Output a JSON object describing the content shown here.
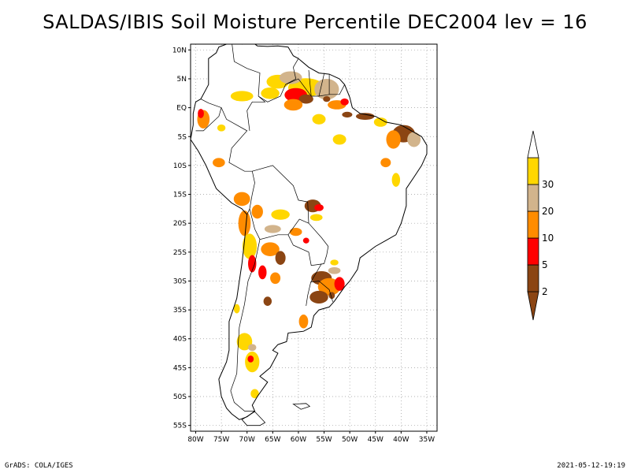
{
  "title": "SALDAS/IBIS Soil Moisture Percentile DEC2004 lev = 16",
  "footer": {
    "left": "GrADS: COLA/IGES",
    "right": "2021-05-12-19:19"
  },
  "map": {
    "lat_range": [
      -56,
      11
    ],
    "lon_range": [
      -81,
      -33
    ],
    "lat_ticks": [
      {
        "value": 10,
        "label": "10N"
      },
      {
        "value": 5,
        "label": "5N"
      },
      {
        "value": 0,
        "label": "EQ"
      },
      {
        "value": -5,
        "label": "5S"
      },
      {
        "value": -10,
        "label": "10S"
      },
      {
        "value": -15,
        "label": "15S"
      },
      {
        "value": -20,
        "label": "20S"
      },
      {
        "value": -25,
        "label": "25S"
      },
      {
        "value": -30,
        "label": "30S"
      },
      {
        "value": -35,
        "label": "35S"
      },
      {
        "value": -40,
        "label": "40S"
      },
      {
        "value": -45,
        "label": "45S"
      },
      {
        "value": -50,
        "label": "50S"
      },
      {
        "value": -55,
        "label": "55S"
      }
    ],
    "lon_ticks": [
      {
        "value": -80,
        "label": "80W"
      },
      {
        "value": -75,
        "label": "75W"
      },
      {
        "value": -70,
        "label": "70W"
      },
      {
        "value": -65,
        "label": "65W"
      },
      {
        "value": -60,
        "label": "60W"
      },
      {
        "value": -55,
        "label": "55W"
      },
      {
        "value": -50,
        "label": "50W"
      },
      {
        "value": -45,
        "label": "45W"
      },
      {
        "value": -40,
        "label": "40W"
      },
      {
        "value": -35,
        "label": "35W"
      }
    ],
    "grid": "dotted",
    "coastline": [
      [
        -77.5,
        8.5
      ],
      [
        -76,
        9.5
      ],
      [
        -75.5,
        10.5
      ],
      [
        -74,
        11
      ],
      [
        -72,
        12
      ],
      [
        -71,
        11
      ],
      [
        -70,
        12
      ],
      [
        -68,
        10.7
      ],
      [
        -66,
        10.6
      ],
      [
        -64,
        10.7
      ],
      [
        -62,
        10.5
      ],
      [
        -61,
        9
      ],
      [
        -60,
        8.5
      ],
      [
        -58,
        7
      ],
      [
        -56,
        6
      ],
      [
        -54,
        5.8
      ],
      [
        -52,
        5
      ],
      [
        -51,
        4
      ],
      [
        -50,
        1.8
      ],
      [
        -49.5,
        0
      ],
      [
        -48,
        -1
      ],
      [
        -45,
        -1.5
      ],
      [
        -43,
        -2.5
      ],
      [
        -40,
        -3
      ],
      [
        -38,
        -4
      ],
      [
        -36,
        -5
      ],
      [
        -35,
        -6.5
      ],
      [
        -35,
        -8
      ],
      [
        -36,
        -10
      ],
      [
        -37.5,
        -12
      ],
      [
        -39,
        -14
      ],
      [
        -39,
        -17
      ],
      [
        -40,
        -20
      ],
      [
        -41,
        -22
      ],
      [
        -43,
        -23
      ],
      [
        -45,
        -24
      ],
      [
        -48,
        -26
      ],
      [
        -48.5,
        -28
      ],
      [
        -50,
        -30
      ],
      [
        -51,
        -31
      ],
      [
        -53,
        -33.5
      ],
      [
        -54,
        -34.5
      ],
      [
        -56,
        -35
      ],
      [
        -57,
        -36
      ],
      [
        -57.5,
        -38
      ],
      [
        -59,
        -38.7
      ],
      [
        -62,
        -39
      ],
      [
        -62.3,
        -40.5
      ],
      [
        -64,
        -41
      ],
      [
        -65,
        -42
      ],
      [
        -64,
        -42.5
      ],
      [
        -65.5,
        -45
      ],
      [
        -67.5,
        -46.5
      ],
      [
        -66,
        -47.5
      ],
      [
        -68,
        -50
      ],
      [
        -69,
        -51.5
      ],
      [
        -68.5,
        -52.5
      ],
      [
        -70,
        -53.5
      ],
      [
        -71.5,
        -54
      ],
      [
        -73,
        -53
      ],
      [
        -74,
        -52
      ],
      [
        -75,
        -50
      ],
      [
        -75.5,
        -47
      ],
      [
        -74,
        -44
      ],
      [
        -73.5,
        -42
      ],
      [
        -73.5,
        -40
      ],
      [
        -73.5,
        -37
      ],
      [
        -72,
        -33
      ],
      [
        -71.5,
        -30
      ],
      [
        -71,
        -27
      ],
      [
        -70.5,
        -23
      ],
      [
        -70,
        -18.5
      ],
      [
        -71,
        -17.5
      ],
      [
        -73,
        -16.5
      ],
      [
        -76,
        -14
      ],
      [
        -77,
        -12
      ],
      [
        -78,
        -10
      ],
      [
        -79.5,
        -7.5
      ],
      [
        -81,
        -5.5
      ],
      [
        -80.5,
        -3
      ],
      [
        -80.5,
        -1
      ],
      [
        -80,
        1
      ],
      [
        -79,
        1.5
      ],
      [
        -77.5,
        4
      ],
      [
        -77.5,
        6.5
      ],
      [
        -77.5,
        8.5
      ]
    ],
    "tierra_del_fuego": [
      [
        -68.5,
        -52.6
      ],
      [
        -66.5,
        -54.5
      ],
      [
        -67.5,
        -55
      ],
      [
        -70,
        -55
      ],
      [
        -71,
        -54
      ],
      [
        -68.5,
        -52.6
      ]
    ],
    "falklands": [
      [
        -61,
        -51.3
      ],
      [
        -58.5,
        -51.2
      ],
      [
        -57.8,
        -51.7
      ],
      [
        -59.5,
        -52.2
      ],
      [
        -61,
        -51.3
      ]
    ],
    "borders": [
      [
        [
          -73,
          11.5
        ],
        [
          -72.5,
          8
        ],
        [
          -70,
          6.8
        ],
        [
          -67.5,
          6
        ],
        [
          -67.8,
          2
        ],
        [
          -66.5,
          1
        ],
        [
          -69,
          1
        ],
        [
          -70,
          -0.5
        ],
        [
          -69.5,
          -4
        ]
      ],
      [
        [
          -67.8,
          2
        ],
        [
          -66,
          1
        ],
        [
          -63.5,
          2
        ],
        [
          -62.5,
          4
        ],
        [
          -60.5,
          5
        ],
        [
          -61,
          7
        ],
        [
          -60,
          8.5
        ]
      ],
      [
        [
          -62.5,
          4
        ],
        [
          -60,
          5
        ],
        [
          -57.5,
          2
        ],
        [
          -56,
          2
        ],
        [
          -54,
          2.3
        ],
        [
          -52,
          2.3
        ],
        [
          -51,
          4
        ]
      ],
      [
        [
          -57.5,
          2
        ],
        [
          -58,
          6.5
        ]
      ],
      [
        [
          -56,
          2
        ],
        [
          -55,
          5.8
        ]
      ],
      [
        [
          -54,
          2.3
        ],
        [
          -54,
          5.7
        ]
      ],
      [
        [
          -79,
          1.5
        ],
        [
          -77.5,
          0.8
        ],
        [
          -75,
          0
        ],
        [
          -75.5,
          -1.5
        ],
        [
          -78.5,
          -4
        ],
        [
          -80,
          -4
        ]
      ],
      [
        [
          -75,
          0
        ],
        [
          -74,
          -2
        ],
        [
          -70,
          -4
        ],
        [
          -73,
          -7
        ],
        [
          -73.5,
          -9.5
        ],
        [
          -70.5,
          -11
        ],
        [
          -69,
          -11
        ],
        [
          -68.5,
          -13
        ],
        [
          -69,
          -15
        ],
        [
          -69.5,
          -17.5
        ],
        [
          -70,
          -18.5
        ]
      ],
      [
        [
          -69,
          -11
        ],
        [
          -65,
          -10
        ],
        [
          -61,
          -13.5
        ],
        [
          -60,
          -16
        ],
        [
          -58.2,
          -16.3
        ],
        [
          -58,
          -20
        ]
      ],
      [
        [
          -69.5,
          -17.5
        ],
        [
          -68.5,
          -21
        ],
        [
          -67.5,
          -22.8
        ],
        [
          -64,
          -22
        ],
        [
          -62,
          -22
        ],
        [
          -59.8,
          -19.3
        ],
        [
          -58,
          -20
        ]
      ],
      [
        [
          -62,
          -22
        ],
        [
          -61,
          -23.8
        ],
        [
          -58,
          -25
        ],
        [
          -57.5,
          -27.3
        ],
        [
          -55,
          -27
        ],
        [
          -54.5,
          -25.5
        ],
        [
          -54.2,
          -24
        ],
        [
          -55.5,
          -22.5
        ],
        [
          -58,
          -20
        ]
      ],
      [
        [
          -67.5,
          -22.8
        ],
        [
          -68.5,
          -27
        ],
        [
          -69.8,
          -30
        ],
        [
          -70.5,
          -34
        ],
        [
          -71.5,
          -38
        ],
        [
          -71.8,
          -42
        ],
        [
          -72,
          -46
        ],
        [
          -73.2,
          -49
        ],
        [
          -72.5,
          -51
        ],
        [
          -70.5,
          -52.5
        ],
        [
          -68.6,
          -52.5
        ]
      ],
      [
        [
          -57.6,
          -30.2
        ],
        [
          -56,
          -30
        ],
        [
          -54,
          -31.5
        ],
        [
          -53.3,
          -33.6
        ]
      ],
      [
        [
          -57.6,
          -30.2
        ],
        [
          -58.2,
          -32.5
        ],
        [
          -58.5,
          -34.3
        ]
      ],
      [
        [
          -55.5,
          -27
        ],
        [
          -57.6,
          -30.2
        ]
      ]
    ],
    "moisture_patches": [
      {
        "cls": "30",
        "lon": -58.5,
        "lat": 3.5,
        "rx": 3.5,
        "ry": 1.6
      },
      {
        "cls": "20",
        "lon": -54.5,
        "lat": 3.2,
        "rx": 2.4,
        "ry": 1.8
      },
      {
        "cls": "30",
        "lon": -64,
        "lat": 4.5,
        "rx": 2.2,
        "ry": 1.2
      },
      {
        "cls": "20",
        "lon": -61.5,
        "lat": 5.2,
        "rx": 2.2,
        "ry": 1.1
      },
      {
        "cls": "30",
        "lon": -71,
        "lat": 2,
        "rx": 2.2,
        "ry": 0.9
      },
      {
        "cls": "5",
        "lon": -60.5,
        "lat": 2.2,
        "rx": 2.2,
        "ry": 1.2
      },
      {
        "cls": "2",
        "lon": -58.5,
        "lat": 1.5,
        "rx": 1.4,
        "ry": 0.8
      },
      {
        "cls": "10",
        "lon": -61,
        "lat": 0.5,
        "rx": 1.8,
        "ry": 1
      },
      {
        "cls": "10",
        "lon": -52.5,
        "lat": 0.5,
        "rx": 1.8,
        "ry": 0.8
      },
      {
        "cls": "2",
        "lon": -54.5,
        "lat": 1.5,
        "rx": 0.7,
        "ry": 0.5
      },
      {
        "cls": "5",
        "lon": -51,
        "lat": 1,
        "rx": 0.8,
        "ry": 0.6
      },
      {
        "cls": "30",
        "lon": -65.5,
        "lat": 2.5,
        "rx": 1.8,
        "ry": 1
      },
      {
        "cls": "2",
        "lon": -50.5,
        "lat": -1.2,
        "rx": 1,
        "ry": 0.5
      },
      {
        "cls": "30",
        "lon": -56,
        "lat": -2,
        "rx": 1.3,
        "ry": 0.9
      },
      {
        "cls": "2",
        "lon": -47,
        "lat": -1.5,
        "rx": 1.8,
        "ry": 0.6
      },
      {
        "cls": "30",
        "lon": -44,
        "lat": -2.5,
        "rx": 1.3,
        "ry": 0.8
      },
      {
        "cls": "2",
        "lon": -39.5,
        "lat": -4.5,
        "rx": 2.2,
        "ry": 1.5
      },
      {
        "cls": "20",
        "lon": -37.5,
        "lat": -5.5,
        "rx": 1.3,
        "ry": 1.3
      },
      {
        "cls": "10",
        "lon": -41.5,
        "lat": -5.5,
        "rx": 1.4,
        "ry": 1.6
      },
      {
        "cls": "30",
        "lon": -52,
        "lat": -5.5,
        "rx": 1.3,
        "ry": 0.9
      },
      {
        "cls": "10",
        "lon": -78.5,
        "lat": -2,
        "rx": 1.2,
        "ry": 1.6
      },
      {
        "cls": "5",
        "lon": -79,
        "lat": -1,
        "rx": 0.6,
        "ry": 0.8
      },
      {
        "cls": "30",
        "lon": -75,
        "lat": -3.5,
        "rx": 0.8,
        "ry": 0.6
      },
      {
        "cls": "10",
        "lon": -43,
        "lat": -9.5,
        "rx": 1,
        "ry": 0.8
      },
      {
        "cls": "30",
        "lon": -41,
        "lat": -12.5,
        "rx": 0.8,
        "ry": 1.2
      },
      {
        "cls": "10",
        "lon": -75.5,
        "lat": -9.5,
        "rx": 1.2,
        "ry": 0.8
      },
      {
        "cls": "10",
        "lon": -71,
        "lat": -15.8,
        "rx": 1.6,
        "ry": 1.2
      },
      {
        "cls": "10",
        "lon": -70.5,
        "lat": -20,
        "rx": 1.2,
        "ry": 2.2
      },
      {
        "cls": "30",
        "lon": -69.5,
        "lat": -24,
        "rx": 1.4,
        "ry": 2.2
      },
      {
        "cls": "5",
        "lon": -69,
        "lat": -27,
        "rx": 0.8,
        "ry": 1.5
      },
      {
        "cls": "10",
        "lon": -68,
        "lat": -18,
        "rx": 1.1,
        "ry": 1.2
      },
      {
        "cls": "30",
        "lon": -63.5,
        "lat": -18.5,
        "rx": 1.8,
        "ry": 0.9
      },
      {
        "cls": "20",
        "lon": -65,
        "lat": -21,
        "rx": 1.6,
        "ry": 0.7
      },
      {
        "cls": "10",
        "lon": -65.5,
        "lat": -24.5,
        "rx": 1.8,
        "ry": 1.2
      },
      {
        "cls": "2",
        "lon": -63.5,
        "lat": -26,
        "rx": 1,
        "ry": 1.2
      },
      {
        "cls": "5",
        "lon": -67,
        "lat": -28.5,
        "rx": 0.8,
        "ry": 1.2
      },
      {
        "cls": "10",
        "lon": -64.5,
        "lat": -29.5,
        "rx": 1,
        "ry": 1
      },
      {
        "cls": "2",
        "lon": -66,
        "lat": -33.5,
        "rx": 0.8,
        "ry": 0.8
      },
      {
        "cls": "2",
        "lon": -57.2,
        "lat": -17,
        "rx": 1.6,
        "ry": 1.1
      },
      {
        "cls": "5",
        "lon": -56,
        "lat": -17.3,
        "rx": 0.9,
        "ry": 0.6
      },
      {
        "cls": "30",
        "lon": -56.5,
        "lat": -19,
        "rx": 1.2,
        "ry": 0.6
      },
      {
        "cls": "10",
        "lon": -60.5,
        "lat": -21.5,
        "rx": 1.2,
        "ry": 0.7
      },
      {
        "cls": "5",
        "lon": -58.5,
        "lat": -23,
        "rx": 0.6,
        "ry": 0.5
      },
      {
        "cls": "30",
        "lon": -53,
        "lat": -26.8,
        "rx": 0.8,
        "ry": 0.5
      },
      {
        "cls": "2",
        "lon": -55.5,
        "lat": -29.5,
        "rx": 2,
        "ry": 1.2
      },
      {
        "cls": "10",
        "lon": -54,
        "lat": -31,
        "rx": 2.2,
        "ry": 1.5
      },
      {
        "cls": "2",
        "lon": -56,
        "lat": -32.8,
        "rx": 1.8,
        "ry": 1.1
      },
      {
        "cls": "5",
        "lon": -52,
        "lat": -30.5,
        "rx": 1,
        "ry": 1.2
      },
      {
        "cls": "20",
        "lon": -53,
        "lat": -28.2,
        "rx": 1.2,
        "ry": 0.6
      },
      {
        "cls": "2",
        "lon": -53.5,
        "lat": -32.5,
        "rx": 0.6,
        "ry": 0.6
      },
      {
        "cls": "10",
        "lon": -59,
        "lat": -37,
        "rx": 0.9,
        "ry": 1.2
      },
      {
        "cls": "30",
        "lon": -70.5,
        "lat": -40.5,
        "rx": 1.5,
        "ry": 1.5
      },
      {
        "cls": "30",
        "lon": -69,
        "lat": -44,
        "rx": 1.4,
        "ry": 1.8
      },
      {
        "cls": "5",
        "lon": -69.3,
        "lat": -43.5,
        "rx": 0.6,
        "ry": 0.6
      },
      {
        "cls": "20",
        "lon": -69,
        "lat": -41.5,
        "rx": 0.8,
        "ry": 0.6
      },
      {
        "cls": "30",
        "lon": -68.5,
        "lat": -49.5,
        "rx": 0.8,
        "ry": 0.8
      },
      {
        "cls": "30",
        "lon": -72,
        "lat": -34.8,
        "rx": 0.6,
        "ry": 0.8
      }
    ],
    "legend": {
      "orientation": "vertical",
      "levels": [
        {
          "label": "2",
          "color": "#8b4513"
        },
        {
          "label": "5",
          "color": "#ff0000"
        },
        {
          "label": "10",
          "color": "#ff8c00"
        },
        {
          "label": "20",
          "color": "#d2b48c"
        },
        {
          "label": "30",
          "color": "#ffd700"
        }
      ],
      "end_arrow_color": "#ffffff"
    }
  }
}
